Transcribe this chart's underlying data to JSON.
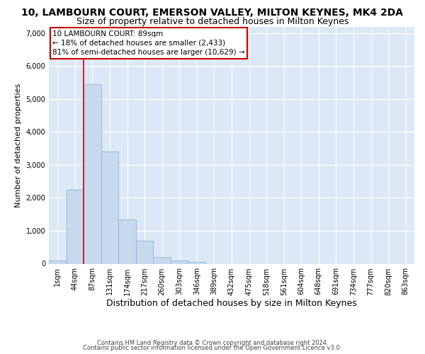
{
  "title": "10, LAMBOURN COURT, EMERSON VALLEY, MILTON KEYNES, MK4 2DA",
  "subtitle": "Size of property relative to detached houses in Milton Keynes",
  "xlabel": "Distribution of detached houses by size in Milton Keynes",
  "ylabel": "Number of detached properties",
  "footnote1": "Contains HM Land Registry data © Crown copyright and database right 2024.",
  "footnote2": "Contains public sector information licensed under the Open Government Licence v3.0.",
  "bar_labels": [
    "1sqm",
    "44sqm",
    "87sqm",
    "131sqm",
    "174sqm",
    "217sqm",
    "260sqm",
    "303sqm",
    "346sqm",
    "389sqm",
    "432sqm",
    "475sqm",
    "518sqm",
    "561sqm",
    "604sqm",
    "648sqm",
    "691sqm",
    "734sqm",
    "777sqm",
    "820sqm",
    "863sqm"
  ],
  "bar_values": [
    100,
    2250,
    5450,
    3400,
    1350,
    700,
    200,
    90,
    55,
    0,
    0,
    0,
    0,
    0,
    0,
    0,
    0,
    0,
    0,
    0,
    0
  ],
  "bar_color": "#c8d9ee",
  "bar_edge_color": "#8ab4d8",
  "annotation_box_text": "10 LAMBOURN COURT: 89sqm\n← 18% of detached houses are smaller (2,433)\n81% of semi-detached houses are larger (10,629) →",
  "annotation_box_color": "white",
  "annotation_box_edge_color": "#cc0000",
  "vline_x": 2,
  "vline_color": "#cc0000",
  "ylim": [
    0,
    7200
  ],
  "yticks": [
    0,
    1000,
    2000,
    3000,
    4000,
    5000,
    6000,
    7000
  ],
  "bg_color": "#dce8f5",
  "grid_color": "white",
  "title_fontsize": 10,
  "subtitle_fontsize": 9,
  "xlabel_fontsize": 9,
  "ylabel_fontsize": 8,
  "tick_fontsize": 7,
  "annotation_fontsize": 7.5,
  "footnote_fontsize": 6
}
